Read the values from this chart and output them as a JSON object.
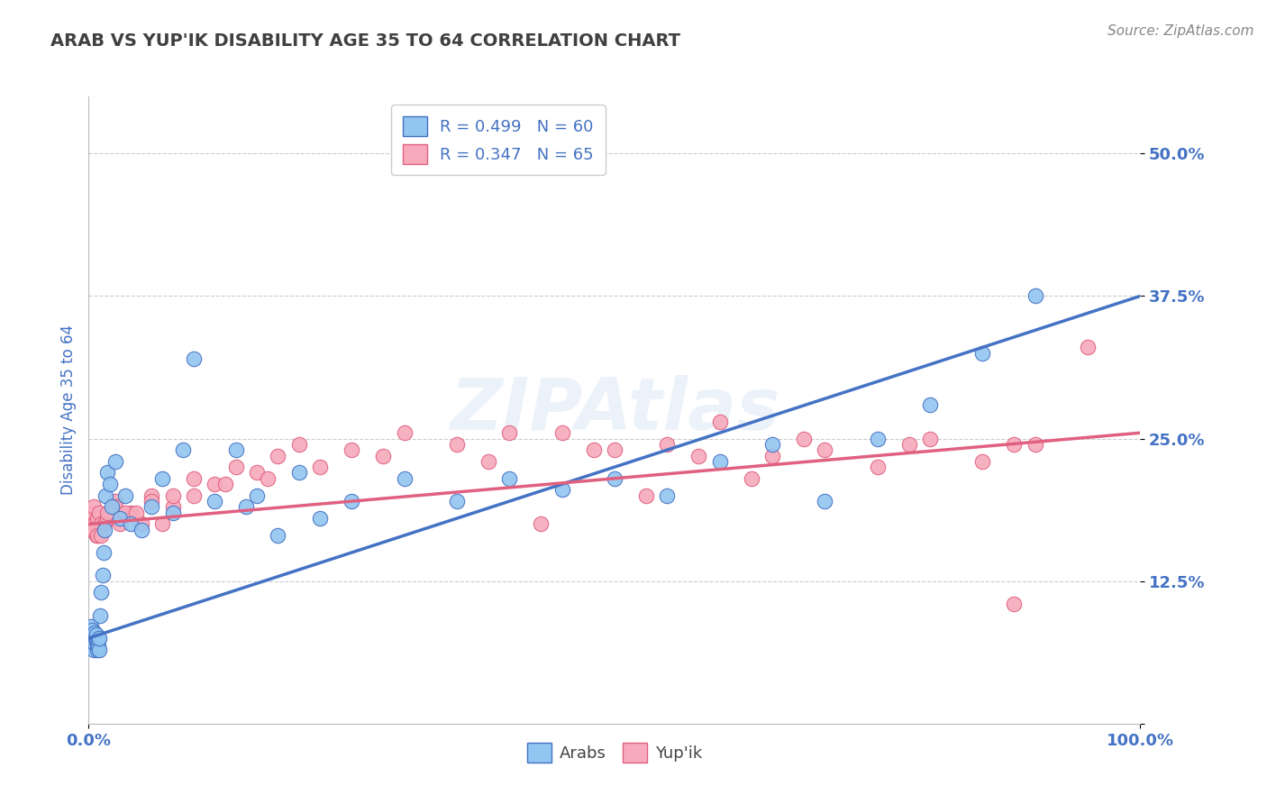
{
  "title": "ARAB VS YUP'IK DISABILITY AGE 35 TO 64 CORRELATION CHART",
  "source": "Source: ZipAtlas.com",
  "ylabel": "Disability Age 35 to 64",
  "xlim": [
    0,
    1.0
  ],
  "ylim": [
    0.0,
    0.55
  ],
  "x_ticks": [
    0.0,
    1.0
  ],
  "x_tick_labels": [
    "0.0%",
    "100.0%"
  ],
  "y_ticks": [
    0.0,
    0.125,
    0.25,
    0.375,
    0.5
  ],
  "y_tick_labels": [
    "",
    "12.5%",
    "25.0%",
    "37.5%",
    "50.0%"
  ],
  "legend_arab": "R = 0.499   N = 60",
  "legend_yupik": "R = 0.347   N = 65",
  "arab_color": "#92C5F0",
  "yupik_color": "#F7AABB",
  "arab_line_color": "#4472C4",
  "yupik_line_color": "#E06080",
  "background_color": "#FFFFFF",
  "grid_color": "#CCCCCC",
  "title_color": "#404040",
  "axis_label_color": "#4472C4",
  "tick_label_color": "#4472C4",
  "arab_line_x": [
    0.0,
    1.0
  ],
  "arab_line_y": [
    0.075,
    0.375
  ],
  "yupik_line_x": [
    0.0,
    1.0
  ],
  "yupik_line_y": [
    0.175,
    0.255
  ],
  "arab_x": [
    0.001,
    0.001,
    0.002,
    0.002,
    0.003,
    0.003,
    0.004,
    0.004,
    0.005,
    0.005,
    0.006,
    0.006,
    0.007,
    0.007,
    0.008,
    0.008,
    0.009,
    0.009,
    0.01,
    0.01,
    0.011,
    0.012,
    0.013,
    0.014,
    0.015,
    0.016,
    0.018,
    0.02,
    0.022,
    0.025,
    0.03,
    0.035,
    0.04,
    0.05,
    0.06,
    0.07,
    0.08,
    0.09,
    0.1,
    0.12,
    0.14,
    0.15,
    0.16,
    0.18,
    0.2,
    0.22,
    0.25,
    0.3,
    0.35,
    0.4,
    0.45,
    0.5,
    0.55,
    0.6,
    0.65,
    0.7,
    0.75,
    0.8,
    0.85,
    0.9
  ],
  "arab_y": [
    0.075,
    0.08,
    0.078,
    0.085,
    0.072,
    0.082,
    0.068,
    0.078,
    0.065,
    0.075,
    0.07,
    0.08,
    0.072,
    0.078,
    0.065,
    0.07,
    0.068,
    0.073,
    0.065,
    0.075,
    0.095,
    0.115,
    0.13,
    0.15,
    0.17,
    0.2,
    0.22,
    0.21,
    0.19,
    0.23,
    0.18,
    0.2,
    0.175,
    0.17,
    0.19,
    0.215,
    0.185,
    0.24,
    0.32,
    0.195,
    0.24,
    0.19,
    0.2,
    0.165,
    0.22,
    0.18,
    0.195,
    0.215,
    0.195,
    0.215,
    0.205,
    0.215,
    0.2,
    0.23,
    0.245,
    0.195,
    0.25,
    0.28,
    0.325,
    0.375
  ],
  "yupik_x": [
    0.001,
    0.002,
    0.003,
    0.004,
    0.005,
    0.006,
    0.007,
    0.008,
    0.01,
    0.012,
    0.015,
    0.018,
    0.02,
    0.025,
    0.03,
    0.04,
    0.05,
    0.06,
    0.07,
    0.08,
    0.1,
    0.12,
    0.14,
    0.16,
    0.18,
    0.2,
    0.25,
    0.3,
    0.35,
    0.4,
    0.45,
    0.5,
    0.55,
    0.6,
    0.65,
    0.7,
    0.75,
    0.8,
    0.85,
    0.9,
    0.005,
    0.008,
    0.012,
    0.018,
    0.025,
    0.035,
    0.045,
    0.06,
    0.08,
    0.1,
    0.13,
    0.17,
    0.22,
    0.28,
    0.38,
    0.48,
    0.58,
    0.68,
    0.78,
    0.88,
    0.43,
    0.53,
    0.63,
    0.88,
    0.95
  ],
  "yupik_y": [
    0.175,
    0.18,
    0.17,
    0.185,
    0.19,
    0.175,
    0.165,
    0.18,
    0.185,
    0.175,
    0.175,
    0.18,
    0.185,
    0.195,
    0.175,
    0.185,
    0.175,
    0.2,
    0.175,
    0.19,
    0.2,
    0.21,
    0.225,
    0.22,
    0.235,
    0.245,
    0.24,
    0.255,
    0.245,
    0.255,
    0.255,
    0.24,
    0.245,
    0.265,
    0.235,
    0.24,
    0.225,
    0.25,
    0.23,
    0.245,
    0.17,
    0.165,
    0.165,
    0.185,
    0.19,
    0.185,
    0.185,
    0.195,
    0.2,
    0.215,
    0.21,
    0.215,
    0.225,
    0.235,
    0.23,
    0.24,
    0.235,
    0.25,
    0.245,
    0.245,
    0.175,
    0.2,
    0.215,
    0.105,
    0.33
  ]
}
